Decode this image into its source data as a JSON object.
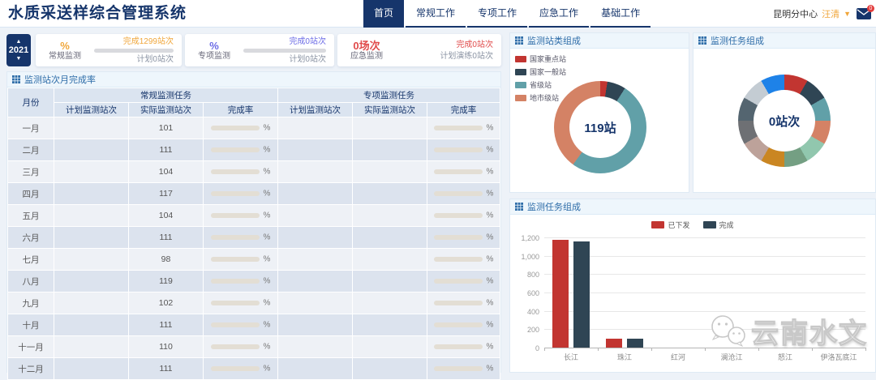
{
  "header": {
    "app_title": "水质采送样综合管理系统",
    "nav": [
      {
        "label": "首页",
        "active": true
      },
      {
        "label": "常规工作",
        "active": false
      },
      {
        "label": "专项工作",
        "active": false
      },
      {
        "label": "应急工作",
        "active": false
      },
      {
        "label": "基础工作",
        "active": false
      }
    ],
    "user_org": "昆明分中心",
    "user_name": "汪清",
    "mail_badge": "0"
  },
  "year_selector": {
    "year": "2021"
  },
  "stat_cards": [
    {
      "value": "%",
      "label": "常规监测",
      "done": "完成1299站次",
      "plan": "计划0站次",
      "accent": "#f0a63a",
      "has_bar": true
    },
    {
      "value": "%",
      "label": "专项监测",
      "done": "完成0站次",
      "plan": "计划0站次",
      "accent": "#6b6be6",
      "has_bar": true
    },
    {
      "value": "0场次",
      "label": "应急监测",
      "done": "完成0站次",
      "plan": "计划演练0站次",
      "accent": "#e04b4b",
      "has_bar": false
    }
  ],
  "table_panel": {
    "title": "监测站次月完成率",
    "month_header": "月份",
    "group_headers": [
      "常规监测任务",
      "专项监测任务"
    ],
    "sub_headers": [
      "计划监测站次",
      "实际监测站次",
      "完成率"
    ],
    "percent_suffix": "%",
    "rows": [
      {
        "month": "一月",
        "plan1": "",
        "actual1": "101",
        "plan2": "",
        "actual2": ""
      },
      {
        "month": "二月",
        "plan1": "",
        "actual1": "111",
        "plan2": "",
        "actual2": ""
      },
      {
        "month": "三月",
        "plan1": "",
        "actual1": "104",
        "plan2": "",
        "actual2": ""
      },
      {
        "month": "四月",
        "plan1": "",
        "actual1": "117",
        "plan2": "",
        "actual2": ""
      },
      {
        "month": "五月",
        "plan1": "",
        "actual1": "104",
        "plan2": "",
        "actual2": ""
      },
      {
        "month": "六月",
        "plan1": "",
        "actual1": "111",
        "plan2": "",
        "actual2": ""
      },
      {
        "month": "七月",
        "plan1": "",
        "actual1": "98",
        "plan2": "",
        "actual2": ""
      },
      {
        "month": "八月",
        "plan1": "",
        "actual1": "119",
        "plan2": "",
        "actual2": ""
      },
      {
        "month": "九月",
        "plan1": "",
        "actual1": "102",
        "plan2": "",
        "actual2": ""
      },
      {
        "month": "十月",
        "plan1": "",
        "actual1": "111",
        "plan2": "",
        "actual2": ""
      },
      {
        "month": "十一月",
        "plan1": "",
        "actual1": "110",
        "plan2": "",
        "actual2": ""
      },
      {
        "month": "十二月",
        "plan1": "",
        "actual1": "111",
        "plan2": "",
        "actual2": ""
      }
    ]
  },
  "chart_data": [
    {
      "type": "pie",
      "title": "监测站类组成",
      "center_label": "119站",
      "legend_position": "top-left",
      "slices": [
        {
          "name": "国家重点站",
          "pct": 2.5,
          "color": "#c23531"
        },
        {
          "name": "国家一般站",
          "pct": 6.5,
          "color": "#2f4554"
        },
        {
          "name": "省级站",
          "pct": 51.0,
          "color": "#61a0a8"
        },
        {
          "name": "地市级站",
          "pct": 40.0,
          "color": "#d48265"
        }
      ]
    },
    {
      "type": "pie",
      "title": "监测任务组成",
      "center_label": "0站次",
      "legend_position": "none",
      "slices": [
        {
          "name": "",
          "pct": 8.33,
          "color": "#c23531"
        },
        {
          "name": "",
          "pct": 8.33,
          "color": "#2f4554"
        },
        {
          "name": "",
          "pct": 8.33,
          "color": "#61a0a8"
        },
        {
          "name": "",
          "pct": 8.33,
          "color": "#d48265"
        },
        {
          "name": "",
          "pct": 8.33,
          "color": "#91c7ae"
        },
        {
          "name": "",
          "pct": 8.33,
          "color": "#749f83"
        },
        {
          "name": "",
          "pct": 8.33,
          "color": "#ca8622"
        },
        {
          "name": "",
          "pct": 8.33,
          "color": "#bda29a"
        },
        {
          "name": "",
          "pct": 8.33,
          "color": "#6e7074"
        },
        {
          "name": "",
          "pct": 8.33,
          "color": "#546570"
        },
        {
          "name": "",
          "pct": 8.33,
          "color": "#c4ccd3"
        },
        {
          "name": "",
          "pct": 8.37,
          "color": "#1e82e8"
        }
      ]
    },
    {
      "type": "bar",
      "title": "监测任务组成",
      "categories": [
        "长江",
        "珠江",
        "红河",
        "澜沧江",
        "怒江",
        "伊洛瓦底江"
      ],
      "series": [
        {
          "name": "已下发",
          "color": "#c23531",
          "values": [
            1170,
            100,
            0,
            0,
            0,
            0
          ]
        },
        {
          "name": "完成",
          "color": "#2f4554",
          "values": [
            1160,
            100,
            0,
            0,
            0,
            0
          ]
        }
      ],
      "ylim": [
        0,
        1200
      ],
      "ytick_labels": [
        "1,200",
        "1,000",
        "800",
        "600",
        "400",
        "200",
        "0"
      ],
      "grid": true,
      "legend_position": "top-center"
    }
  ],
  "watermark": {
    "text": "云南水文"
  }
}
